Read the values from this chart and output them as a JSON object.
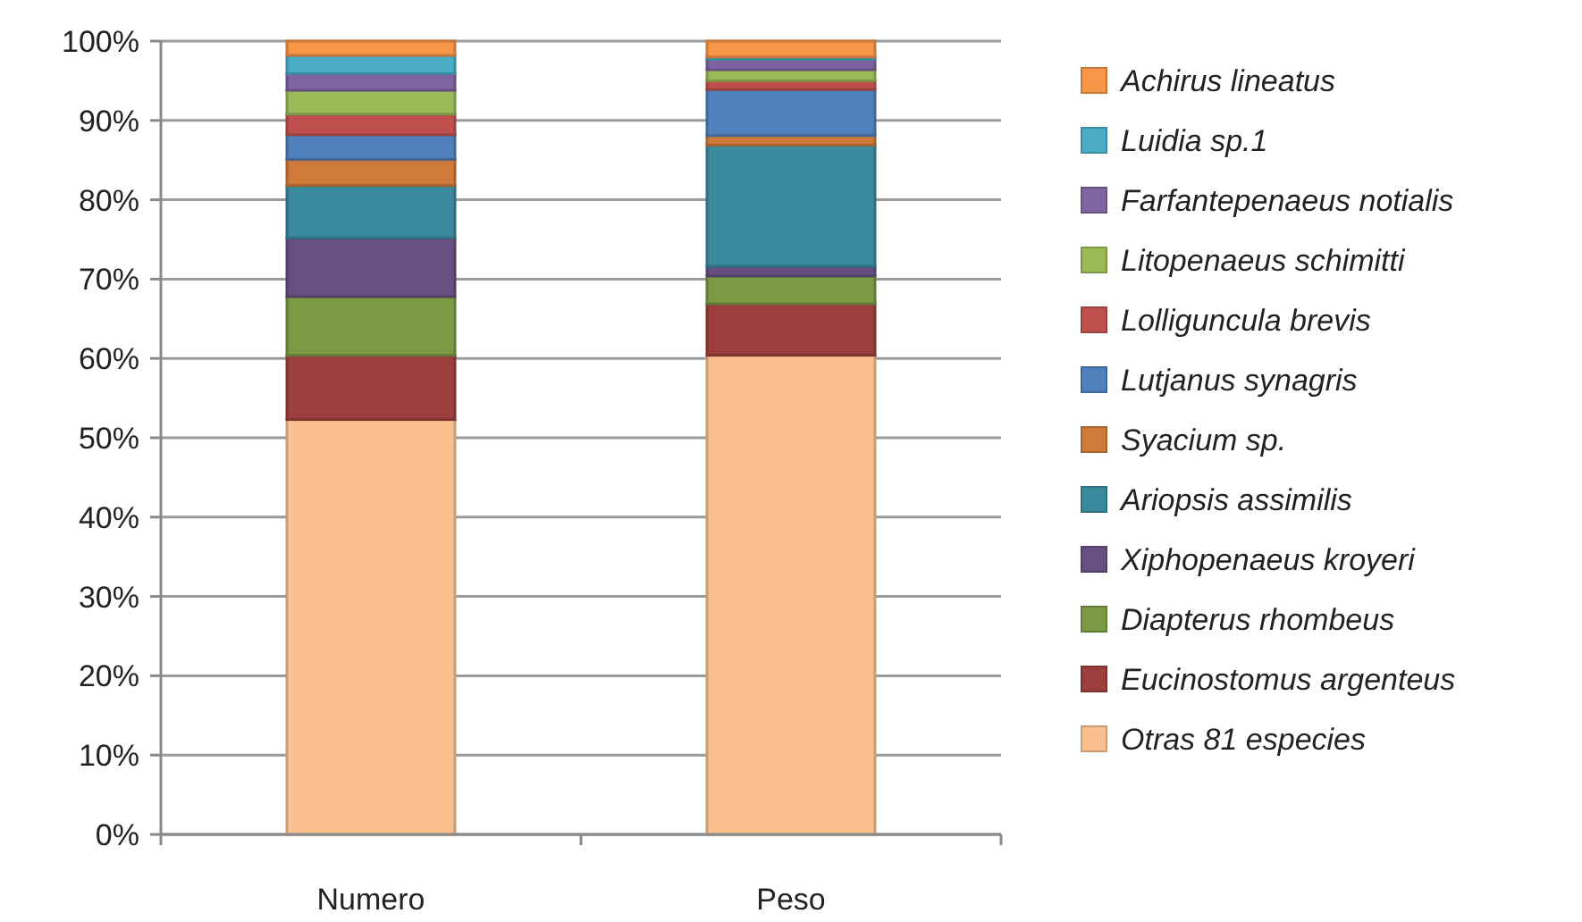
{
  "chart_data": {
    "type": "bar",
    "stacked": true,
    "categories": [
      "Numero",
      "Peso"
    ],
    "series": [
      {
        "name": "Otras 81 especies",
        "color": "#fac090",
        "values": [
          52.3,
          60.4
        ]
      },
      {
        "name": "Eucinostomus  argenteus",
        "color": "#9c3f3c",
        "values": [
          8.1,
          6.5
        ]
      },
      {
        "name": "Diapterus rhombeus",
        "color": "#7a9a44",
        "values": [
          7.4,
          3.5
        ]
      },
      {
        "name": "Xiphopenaeus kroyeri",
        "color": "#674f82",
        "values": [
          7.4,
          1.2
        ]
      },
      {
        "name": "Ariopsis assimilis",
        "color": "#3a8a9e",
        "values": [
          6.6,
          15.3
        ]
      },
      {
        "name": "Syacium sp.",
        "color": "#cf7a39",
        "values": [
          3.3,
          1.2
        ]
      },
      {
        "name": "Lutjanus synagris",
        "color": "#4f81bd",
        "values": [
          3.1,
          5.8
        ]
      },
      {
        "name": "Lolliguncula brevis",
        "color": "#c0504d",
        "values": [
          2.6,
          1.1
        ]
      },
      {
        "name": "Litopenaeus schimitti",
        "color": "#9bbb59",
        "values": [
          3.0,
          1.4
        ]
      },
      {
        "name": "Farfantepenaeus  notialis",
        "color": "#8064a2",
        "values": [
          2.1,
          1.3
        ]
      },
      {
        "name": "Luidia sp.1",
        "color": "#4bacc6",
        "values": [
          2.3,
          0.3
        ]
      },
      {
        "name": "Achirus lineatus",
        "color": "#f79646",
        "values": [
          1.8,
          2.0
        ]
      }
    ],
    "ylim": [
      0,
      100
    ],
    "yticks": [
      {
        "value": 0,
        "label": "0%"
      },
      {
        "value": 10,
        "label": "10%"
      },
      {
        "value": 20,
        "label": "20%"
      },
      {
        "value": 30,
        "label": "30%"
      },
      {
        "value": 40,
        "label": "40%"
      },
      {
        "value": 50,
        "label": "50%"
      },
      {
        "value": 60,
        "label": "60%"
      },
      {
        "value": 70,
        "label": "70%"
      },
      {
        "value": 80,
        "label": "80%"
      },
      {
        "value": 90,
        "label": "90%"
      },
      {
        "value": 100,
        "label": "100%"
      }
    ],
    "grid": "y",
    "legend": "right"
  }
}
